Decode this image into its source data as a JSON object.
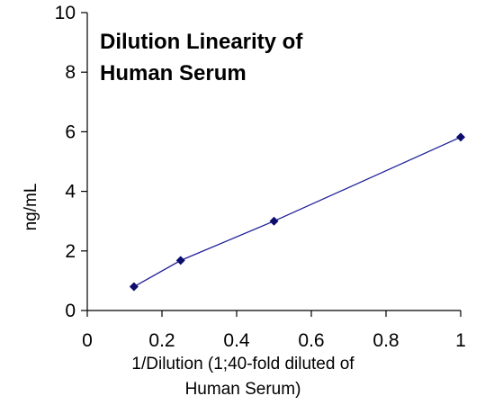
{
  "chart_data": {
    "type": "line",
    "title_lines": [
      "Dilution Linearity of",
      "Human Serum"
    ],
    "xlabel_lines": [
      "1/Dilution (1;40-fold diluted of",
      "Human Serum)"
    ],
    "ylabel": "ng/mL",
    "xlim": [
      0,
      1
    ],
    "ylim": [
      0,
      10
    ],
    "xticks": [
      0,
      0.2,
      0.4,
      0.6,
      0.8,
      1
    ],
    "xtick_labels": [
      "0",
      "0.2",
      "0.4",
      "0.6",
      "0.8",
      "1"
    ],
    "yticks": [
      0,
      2,
      4,
      6,
      8,
      10
    ],
    "ytick_labels": [
      "0",
      "2",
      "4",
      "6",
      "8",
      "10"
    ],
    "grid": false,
    "series": [
      {
        "x": [
          0.125,
          0.25,
          0.5,
          1.0
        ],
        "y": [
          0.8,
          1.68,
          3.0,
          5.82
        ],
        "color": "#1f1f9a",
        "marker": "diamond"
      }
    ]
  }
}
